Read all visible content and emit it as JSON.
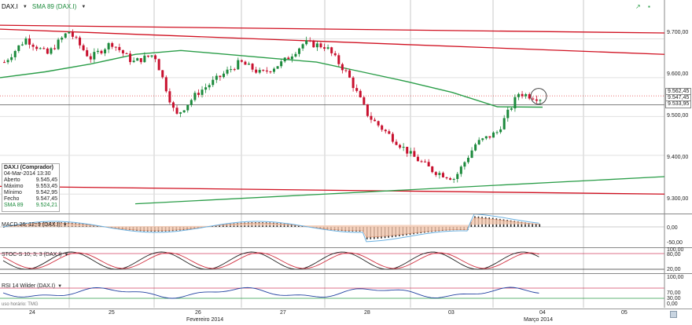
{
  "header": {
    "symbol": "DAX.I",
    "sma_label": "SMA 89 (DAX.I)",
    "dropdown_glyph": "▼",
    "maximize_glyph": "↗",
    "window_glyph": "▪"
  },
  "infobox": {
    "title": "DAX.I (Comprador)",
    "datetime": "04-Mar-2014 13:30",
    "rows": [
      {
        "label": "Aberto",
        "value": "9.545,45"
      },
      {
        "label": "Máximo",
        "value": "9.553,45"
      },
      {
        "label": "Mínimo",
        "value": "9.542,95"
      },
      {
        "label": "Fecho",
        "value": "9.547,45"
      },
      {
        "label": "SMA 89",
        "value": "9.524,21"
      }
    ]
  },
  "price_axis": {
    "ticks": [
      "9.700,00",
      "9.600,00",
      "9.500,00",
      "9.400,00",
      "9.300,00"
    ],
    "tags": [
      "9.562,45",
      "9.547,45",
      "9.533,95"
    ]
  },
  "indicators": {
    "macd": {
      "label": "MACD 26; 12; 9 (DAX.I)",
      "ticks": [
        "0,00",
        "-50,00"
      ]
    },
    "stoch": {
      "label": "STOC-S 10; 3; 3 (DAX.I)",
      "ticks": [
        "100,00",
        "80,00",
        "20,00",
        "0,00"
      ]
    },
    "rsi": {
      "label": "RSI 14 Wilder (DAX.I)",
      "ticks": [
        "100,00",
        "70,00",
        "30,00",
        "0,00"
      ]
    }
  },
  "footer_note": "uso horário: TMG",
  "x_axis": {
    "days": [
      "24",
      "25",
      "26",
      "27",
      "28",
      "03",
      "04",
      "05"
    ],
    "months": [
      "Fevereiro 2014",
      "Março 2014"
    ]
  },
  "colors": {
    "up": "#1c8a3c",
    "down": "#c8102e",
    "sma": "#2a9d48",
    "channel": "#d01020",
    "grid": "#c8c8c8"
  },
  "chart_data": {
    "type": "candlestick",
    "x": [
      "24",
      "25",
      "26",
      "27",
      "28",
      "03",
      "04"
    ],
    "price_range": [
      9250,
      9800
    ],
    "sma89": [
      9600,
      9615,
      9635,
      9660,
      9670,
      9660,
      9650,
      9640,
      9615,
      9590,
      9562,
      9525,
      9524
    ],
    "candles_close": [
      9640,
      9700,
      9660,
      9720,
      9650,
      9690,
      9640,
      9660,
      9500,
      9560,
      9600,
      9640,
      9610,
      9640,
      9690,
      9680,
      9610,
      9500,
      9450,
      9400,
      9360,
      9340,
      9430,
      9460,
      9560,
      9547
    ],
    "resistance_lines": [
      {
        "from": 9735,
        "to": 9715
      },
      {
        "from": 9725,
        "to": 9660
      }
    ],
    "support_lines": [
      {
        "from": 9320,
        "to": 9300
      }
    ],
    "lower_trend_line": {
      "from": 9275,
      "to": 9345
    }
  }
}
